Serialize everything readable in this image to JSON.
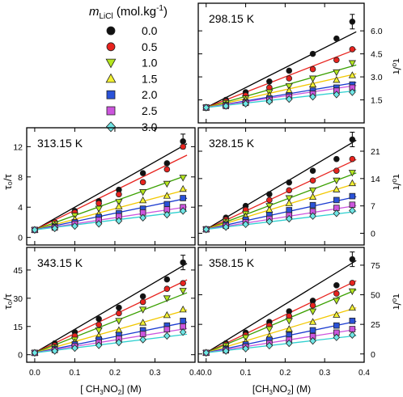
{
  "legend": {
    "title_var": "m",
    "title_sub": "LiCl",
    "title_units": " (mol.kg",
    "title_exp": "-1",
    "title_close": ")",
    "entries": [
      {
        "label": "0.0",
        "marker": "circle",
        "fill": "#111111",
        "line": "#000000"
      },
      {
        "label": "0.5",
        "marker": "circle",
        "fill": "#e8231e",
        "line": "#e8231e"
      },
      {
        "label": "1.0",
        "marker": "tri-down",
        "fill": "#b4e61e",
        "line": "#3aa000"
      },
      {
        "label": "1.5",
        "marker": "tri-up",
        "fill": "#f2f032",
        "line": "#f2c800"
      },
      {
        "label": "2.0",
        "marker": "square",
        "fill": "#2a52d8",
        "line": "#1a3bd0"
      },
      {
        "label": "2.5",
        "marker": "square",
        "fill": "#cc55dd",
        "line": "#cc55dd"
      },
      {
        "label": "3.0",
        "marker": "diamond",
        "fill": "#6fe6e6",
        "line": "#30d0d0"
      }
    ]
  },
  "axes_text": {
    "ylabel_left": "τ₀/τ",
    "ylabel_right": "τ₀/τ",
    "xlabel_left": "[ CH",
    "xlabel_right": "[CH",
    "xlabel_mid": "3",
    "xlabel_no": "NO",
    "xlabel_sub2": "2",
    "xlabel_end": "] (M)"
  },
  "chart_data": [
    {
      "type": "scatter",
      "panel": "top-right",
      "title": "298.15 K",
      "x": [
        0,
        0.05,
        0.1,
        0.16,
        0.21,
        0.27,
        0.33,
        0.37
      ],
      "xlim": [
        -0.02,
        0.4
      ],
      "ylim": [
        0,
        7.8
      ],
      "yticks": [
        1.5,
        3.0,
        4.5,
        6.0
      ],
      "ytick_labels": [
        "1.5",
        "3.0",
        "4.5",
        "6.0"
      ],
      "yaxis_side": "right",
      "grid": false,
      "series": [
        {
          "values": [
            1,
            1.5,
            2.0,
            2.7,
            3.4,
            4.5,
            5.5,
            6.6
          ],
          "fit_slope": 13.0
        },
        {
          "values": [
            1,
            1.4,
            1.8,
            2.3,
            2.9,
            3.5,
            4.1,
            4.8
          ],
          "fit_slope": 10.0
        },
        {
          "values": [
            1,
            1.3,
            1.6,
            2.0,
            2.4,
            2.9,
            3.3,
            3.9
          ],
          "fit_slope": 7.3
        },
        {
          "values": [
            1,
            1.2,
            1.5,
            1.8,
            2.1,
            2.5,
            2.8,
            3.1
          ],
          "fit_slope": 5.8
        },
        {
          "values": [
            1,
            1.15,
            1.35,
            1.6,
            1.8,
            2.1,
            2.3,
            2.5
          ],
          "fit_slope": 4.3
        },
        {
          "values": [
            1,
            1.1,
            1.3,
            1.5,
            1.7,
            1.9,
            2.1,
            2.3
          ],
          "fit_slope": 3.8
        },
        {
          "values": [
            1,
            1.1,
            1.25,
            1.4,
            1.55,
            1.7,
            1.85,
            2.0
          ],
          "fit_slope": 2.9
        }
      ]
    },
    {
      "type": "scatter",
      "panel": "middle-left",
      "title": "313.15 K",
      "x": [
        0,
        0.05,
        0.1,
        0.16,
        0.21,
        0.27,
        0.33,
        0.37
      ],
      "xlim": [
        -0.02,
        0.4
      ],
      "ylim": [
        -1,
        14.5
      ],
      "yticks": [
        0,
        4,
        8,
        12
      ],
      "ytick_labels": [
        "0",
        "4",
        "8",
        "12"
      ],
      "yaxis_side": "left",
      "grid": false,
      "series": [
        {
          "values": [
            1,
            2,
            3.5,
            4.8,
            6.3,
            8.5,
            9.8,
            12.7
          ],
          "fit_slope": 30.0
        },
        {
          "values": [
            1,
            2,
            3.3,
            4.5,
            5.7,
            7.3,
            9.0,
            12.0
          ],
          "fit_slope": 26.0
        },
        {
          "values": [
            1,
            1.8,
            2.9,
            3.8,
            4.7,
            6.0,
            7.1,
            7.9
          ],
          "fit_slope": 19.0
        },
        {
          "values": [
            1,
            1.6,
            2.4,
            3.1,
            4.1,
            4.9,
            5.5,
            6.4
          ],
          "fit_slope": 14.0
        },
        {
          "values": [
            1,
            1.4,
            2.0,
            2.7,
            3.2,
            3.8,
            4.4,
            5.2
          ],
          "fit_slope": 11.0
        },
        {
          "values": [
            1,
            1.3,
            1.8,
            2.3,
            2.8,
            3.3,
            3.7,
            4.0
          ],
          "fit_slope": 8.0
        },
        {
          "values": [
            1,
            1.2,
            1.5,
            1.8,
            2.2,
            2.6,
            3.0,
            3.5
          ],
          "fit_slope": 6.5
        }
      ]
    },
    {
      "type": "scatter",
      "panel": "middle-right",
      "title": "328.15 K",
      "x": [
        0,
        0.05,
        0.1,
        0.16,
        0.21,
        0.27,
        0.33,
        0.37
      ],
      "xlim": [
        -0.02,
        0.4
      ],
      "ylim": [
        -3,
        27
      ],
      "yticks": [
        0,
        7,
        14,
        21
      ],
      "ytick_labels": [
        "0",
        "7",
        "14",
        "21"
      ],
      "yaxis_side": "right",
      "grid": false,
      "series": [
        {
          "values": [
            1,
            4,
            7,
            10,
            13,
            16,
            19,
            24
          ],
          "fit_slope": 60.0
        },
        {
          "values": [
            1,
            3.5,
            6.0,
            8.5,
            11,
            13.5,
            16,
            19
          ],
          "fit_slope": 47.0
        },
        {
          "values": [
            1,
            3,
            5,
            7,
            9,
            11,
            13.5,
            15.5
          ],
          "fit_slope": 38.0
        },
        {
          "values": [
            1,
            2.7,
            4.3,
            6.0,
            7.7,
            9.3,
            11.2,
            12.8
          ],
          "fit_slope": 31.0
        },
        {
          "values": [
            1,
            2.2,
            3.5,
            4.7,
            5.9,
            7.2,
            8.5,
            9.5
          ],
          "fit_slope": 22.0
        },
        {
          "values": [
            1,
            1.9,
            2.8,
            3.7,
            4.6,
            5.6,
            6.5,
            7.3
          ],
          "fit_slope": 16.0
        },
        {
          "values": [
            1,
            1.6,
            2.3,
            3.0,
            3.7,
            4.4,
            5.1,
            5.8
          ],
          "fit_slope": 12.0
        }
      ]
    },
    {
      "type": "scatter",
      "panel": "bottom-left",
      "title": "343.15 K",
      "x": [
        0,
        0.05,
        0.1,
        0.16,
        0.21,
        0.27,
        0.33,
        0.37
      ],
      "xlim": [
        -0.02,
        0.4
      ],
      "ylim": [
        -4,
        57
      ],
      "yticks": [
        0,
        15,
        30,
        45
      ],
      "ytick_labels": [
        "0",
        "15",
        "30",
        "45"
      ],
      "yaxis_side": "left",
      "grid": false,
      "series": [
        {
          "values": [
            1,
            6,
            12,
            19,
            25,
            31,
            40,
            49
          ],
          "fit_slope": 125.0
        },
        {
          "values": [
            1,
            5,
            10,
            16,
            22,
            28,
            35,
            38
          ],
          "fit_slope": 102.0
        },
        {
          "values": [
            1,
            4,
            8,
            13,
            18,
            24,
            30,
            34
          ],
          "fit_slope": 84.0
        },
        {
          "values": [
            1,
            3.5,
            6.5,
            10,
            13,
            17,
            21,
            24
          ],
          "fit_slope": 60.0
        },
        {
          "values": [
            1,
            3,
            5.5,
            8,
            10.5,
            13,
            15.5,
            18
          ],
          "fit_slope": 43.0
        },
        {
          "values": [
            1,
            2.5,
            4.5,
            6.5,
            8.5,
            11,
            13.5,
            15
          ],
          "fit_slope": 34.0
        },
        {
          "values": [
            1,
            2,
            3.5,
            5,
            6.5,
            8,
            10,
            12
          ],
          "fit_slope": 26.0
        }
      ]
    },
    {
      "type": "scatter",
      "panel": "bottom-right",
      "title": "358.15 K",
      "x": [
        0,
        0.05,
        0.1,
        0.16,
        0.21,
        0.27,
        0.33,
        0.37
      ],
      "xlim": [
        -0.02,
        0.4
      ],
      "ylim": [
        -7,
        90
      ],
      "yticks": [
        0,
        25,
        50,
        75
      ],
      "ytick_labels": [
        "0",
        "25",
        "50",
        "75"
      ],
      "yaxis_side": "right",
      "grid": false,
      "series": [
        {
          "values": [
            1,
            9,
            18,
            27,
            36,
            45,
            58,
            80
          ],
          "fit_slope": 205.0
        },
        {
          "values": [
            1,
            8,
            16,
            24,
            32,
            41,
            51,
            60
          ],
          "fit_slope": 160.0
        },
        {
          "values": [
            1,
            7,
            14,
            21,
            28,
            36,
            45,
            53
          ],
          "fit_slope": 140.0
        },
        {
          "values": [
            1,
            5,
            10,
            15,
            21,
            27,
            33,
            39
          ],
          "fit_slope": 100.0
        },
        {
          "values": [
            1,
            4,
            8,
            12,
            16,
            20,
            24,
            28
          ],
          "fit_slope": 70.0
        },
        {
          "values": [
            1,
            3,
            6,
            9,
            12,
            15,
            18,
            21
          ],
          "fit_slope": 52.0
        },
        {
          "values": [
            1,
            2.5,
            4.5,
            7,
            9,
            11,
            14,
            16
          ],
          "fit_slope": 38.0
        }
      ]
    }
  ],
  "xaxis": {
    "ticks": [
      0.0,
      0.1,
      0.2,
      0.3,
      0.4
    ],
    "tick_labels": [
      "0.0",
      "0.1",
      "0.2",
      "0.3",
      "0.4"
    ]
  }
}
